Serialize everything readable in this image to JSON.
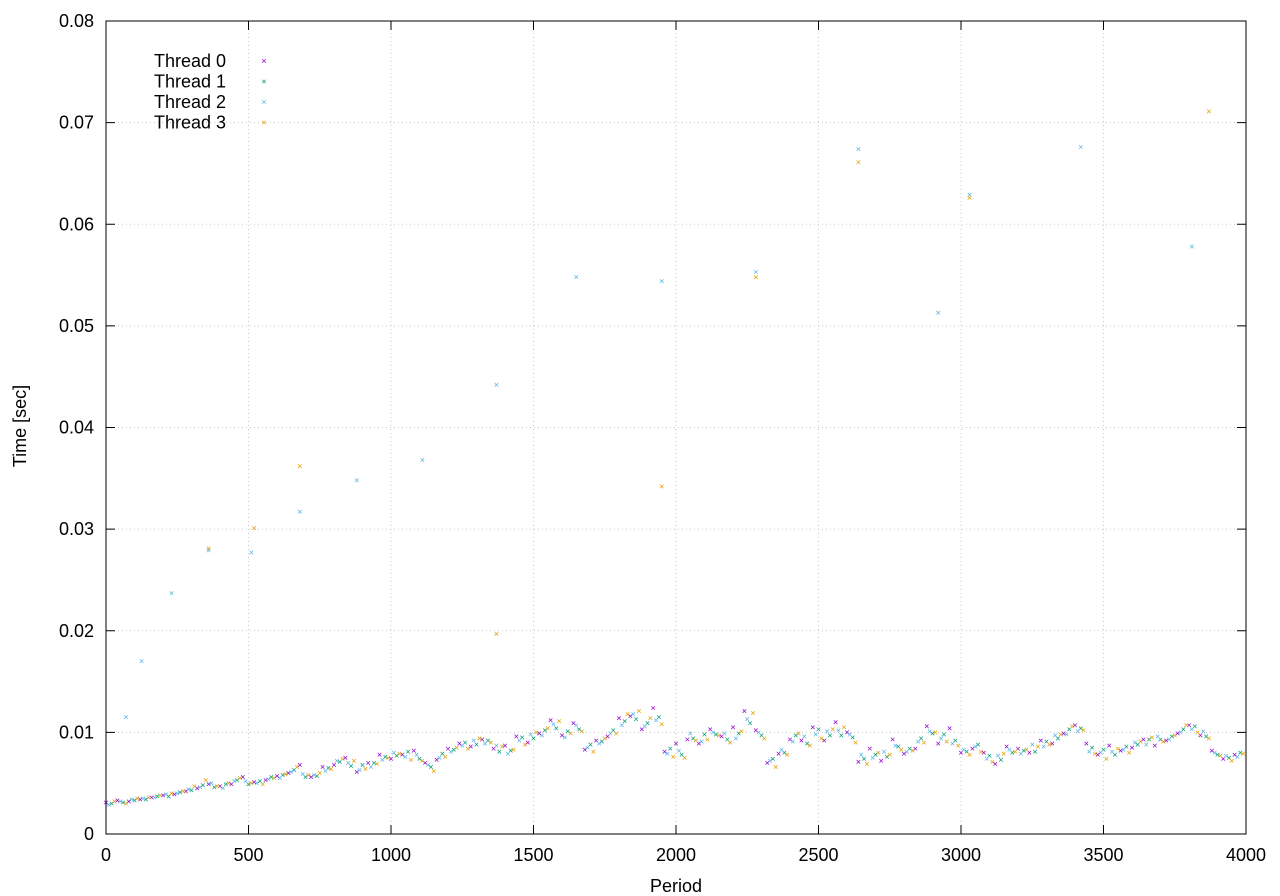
{
  "chart_data": {
    "type": "scatter",
    "xlabel": "Period",
    "ylabel": "Time [sec]",
    "xlim": [
      0,
      4000
    ],
    "ylim": [
      0,
      0.08
    ],
    "x_ticks": [
      "0",
      "500",
      "1000",
      "1500",
      "2000",
      "2500",
      "3000",
      "3500",
      "4000"
    ],
    "y_ticks": [
      "0",
      "0.01",
      "0.02",
      "0.03",
      "0.04",
      "0.05",
      "0.06",
      "0.07",
      "0.08"
    ],
    "grid": true,
    "legend_position": "top-left",
    "marker": "x",
    "series": [
      {
        "name": "Thread 0",
        "color": "#9400d3",
        "x": [
          0,
          40,
          80,
          120,
          160,
          200,
          240,
          280,
          320,
          360,
          400,
          440,
          480,
          520,
          560,
          600,
          640,
          680,
          720,
          760,
          800,
          840,
          880,
          920,
          960,
          1000,
          1040,
          1080,
          1120,
          1160,
          1200,
          1240,
          1280,
          1320,
          1360,
          1400,
          1440,
          1480,
          1520,
          1560,
          1600,
          1640,
          1680,
          1720,
          1760,
          1800,
          1840,
          1880,
          1920,
          1960,
          2000,
          2040,
          2080,
          2120,
          2160,
          2200,
          2240,
          2280,
          2320,
          2360,
          2400,
          2440,
          2480,
          2520,
          2560,
          2600,
          2640,
          2680,
          2720,
          2760,
          2800,
          2840,
          2880,
          2920,
          2960,
          3000,
          3040,
          3080,
          3120,
          3160,
          3200,
          3240,
          3280,
          3320,
          3360,
          3400,
          3440,
          3480,
          3520,
          3560,
          3600,
          3640,
          3680,
          3720,
          3760,
          3800,
          3840,
          3880,
          3920,
          3960
        ],
        "y": [
          0.0031,
          0.0033,
          0.0032,
          0.0034,
          0.0036,
          0.0038,
          0.0039,
          0.0042,
          0.0045,
          0.0049,
          0.0047,
          0.0049,
          0.0056,
          0.0051,
          0.0053,
          0.0057,
          0.006,
          0.0068,
          0.0056,
          0.0066,
          0.0068,
          0.0075,
          0.0061,
          0.007,
          0.0078,
          0.0074,
          0.0078,
          0.0082,
          0.007,
          0.0073,
          0.0084,
          0.0089,
          0.0086,
          0.0093,
          0.0084,
          0.0087,
          0.0096,
          0.009,
          0.0099,
          0.0112,
          0.0097,
          0.0109,
          0.0083,
          0.0092,
          0.0096,
          0.0114,
          0.0116,
          0.0103,
          0.0124,
          0.0081,
          0.0089,
          0.0093,
          0.0089,
          0.0103,
          0.0096,
          0.0105,
          0.0121,
          0.0102,
          0.007,
          0.0079,
          0.0093,
          0.0092,
          0.0105,
          0.0092,
          0.011,
          0.01,
          0.0071,
          0.0084,
          0.0072,
          0.0093,
          0.0079,
          0.0084,
          0.0106,
          0.0089,
          0.0104,
          0.008,
          0.0084,
          0.008,
          0.0069,
          0.0086,
          0.0084,
          0.008,
          0.0092,
          0.0089,
          0.0099,
          0.0107,
          0.0089,
          0.0078,
          0.0087,
          0.0082,
          0.0085,
          0.0093,
          0.0087,
          0.0092,
          0.0099,
          0.0107,
          0.0097,
          0.0082,
          0.0074,
          0.0078
        ]
      },
      {
        "name": "Thread 1",
        "color": "#009e73",
        "x": [
          20,
          60,
          100,
          140,
          180,
          220,
          260,
          300,
          340,
          380,
          420,
          460,
          500,
          540,
          580,
          620,
          660,
          700,
          740,
          780,
          820,
          860,
          900,
          940,
          980,
          1020,
          1060,
          1100,
          1140,
          1180,
          1220,
          1260,
          1300,
          1340,
          1380,
          1420,
          1460,
          1500,
          1540,
          1580,
          1620,
          1660,
          1700,
          1740,
          1780,
          1820,
          1860,
          1900,
          1940,
          1980,
          2020,
          2060,
          2100,
          2140,
          2180,
          2220,
          2260,
          2300,
          2340,
          2380,
          2420,
          2460,
          2500,
          2540,
          2580,
          2620,
          2660,
          2700,
          2740,
          2780,
          2820,
          2860,
          2900,
          2940,
          2980,
          3020,
          3060,
          3100,
          3140,
          3180,
          3220,
          3260,
          3300,
          3340,
          3380,
          3420,
          3460,
          3500,
          3540,
          3580,
          3620,
          3660,
          3700,
          3740,
          3780,
          3820,
          3860,
          3900,
          3940,
          3980
        ],
        "y": [
          0.003,
          0.0031,
          0.0033,
          0.0034,
          0.0037,
          0.0037,
          0.0041,
          0.0043,
          0.0048,
          0.0046,
          0.0049,
          0.0053,
          0.0049,
          0.0052,
          0.0056,
          0.0058,
          0.0063,
          0.0056,
          0.0057,
          0.0065,
          0.0071,
          0.0067,
          0.0068,
          0.007,
          0.0076,
          0.0077,
          0.0081,
          0.0074,
          0.0066,
          0.0079,
          0.0083,
          0.009,
          0.0088,
          0.0092,
          0.0081,
          0.0082,
          0.0095,
          0.0094,
          0.0102,
          0.0104,
          0.0101,
          0.0103,
          0.0088,
          0.0091,
          0.0102,
          0.0111,
          0.0113,
          0.0109,
          0.0115,
          0.0084,
          0.0078,
          0.0094,
          0.0098,
          0.0098,
          0.0093,
          0.0099,
          0.0109,
          0.0097,
          0.0074,
          0.008,
          0.0097,
          0.0089,
          0.0103,
          0.0097,
          0.0097,
          0.0095,
          0.0074,
          0.0078,
          0.0076,
          0.0086,
          0.0084,
          0.0094,
          0.0099,
          0.0098,
          0.0092,
          0.0081,
          0.0088,
          0.0077,
          0.0073,
          0.008,
          0.0082,
          0.0081,
          0.0091,
          0.0094,
          0.0103,
          0.0104,
          0.0085,
          0.0083,
          0.0078,
          0.0086,
          0.0088,
          0.0093,
          0.0093,
          0.0096,
          0.0103,
          0.0106,
          0.0096,
          0.0078,
          0.0075,
          0.008
        ]
      },
      {
        "name": "Thread 2",
        "color": "#56b4e9",
        "x": [
          10,
          50,
          90,
          130,
          170,
          210,
          250,
          290,
          330,
          370,
          410,
          450,
          490,
          530,
          570,
          610,
          650,
          690,
          730,
          770,
          810,
          850,
          890,
          930,
          970,
          1010,
          1050,
          1090,
          1130,
          1170,
          1210,
          1250,
          1290,
          1330,
          1370,
          1410,
          1450,
          1490,
          1530,
          1570,
          1610,
          1650,
          1690,
          1730,
          1770,
          1810,
          1850,
          1890,
          1930,
          1970,
          2010,
          2050,
          2090,
          2130,
          2170,
          2210,
          2250,
          2290,
          2330,
          2370,
          2410,
          2450,
          2490,
          2530,
          2570,
          2610,
          2650,
          2690,
          2730,
          2770,
          2810,
          2850,
          2890,
          2930,
          2970,
          3010,
          3050,
          3090,
          3130,
          3170,
          3210,
          3250,
          3290,
          3330,
          3370,
          3410,
          3450,
          3490,
          3530,
          3570,
          3610,
          3650,
          3690,
          3730,
          3770,
          3810,
          3850,
          3890,
          3930,
          3970
        ],
        "y": [
          0.0029,
          0.0032,
          0.0034,
          0.0035,
          0.0036,
          0.0039,
          0.004,
          0.0044,
          0.0046,
          0.005,
          0.0045,
          0.0052,
          0.0052,
          0.005,
          0.0054,
          0.0055,
          0.0061,
          0.0059,
          0.0058,
          0.0062,
          0.0072,
          0.007,
          0.0063,
          0.0066,
          0.0073,
          0.008,
          0.0076,
          0.0078,
          0.0068,
          0.0075,
          0.0081,
          0.0087,
          0.0092,
          0.0089,
          0.0087,
          0.0079,
          0.0092,
          0.0098,
          0.0097,
          0.0108,
          0.0095,
          0.0107,
          0.0085,
          0.0089,
          0.0099,
          0.0107,
          0.0118,
          0.0106,
          0.0112,
          0.0079,
          0.0082,
          0.0099,
          0.0091,
          0.01,
          0.0099,
          0.0094,
          0.0113,
          0.01,
          0.0072,
          0.0083,
          0.0091,
          0.0096,
          0.0098,
          0.0101,
          0.0102,
          0.0098,
          0.0078,
          0.0075,
          0.0081,
          0.0087,
          0.0081,
          0.0091,
          0.0101,
          0.0094,
          0.0089,
          0.0083,
          0.0086,
          0.0074,
          0.0077,
          0.0083,
          0.0079,
          0.0088,
          0.0086,
          0.0097,
          0.0098,
          0.0101,
          0.0081,
          0.008,
          0.0081,
          0.0083,
          0.009,
          0.0088,
          0.0096,
          0.0093,
          0.01,
          0.0103,
          0.0101,
          0.008,
          0.0077,
          0.0076
        ],
        "outliers": {
          "x": [
            70,
            125,
            230,
            360,
            510,
            680,
            880,
            1110,
            1370,
            1650,
            1950,
            2280,
            2640,
            2920,
            3030,
            3420,
            3810
          ],
          "y": [
            0.0115,
            0.017,
            0.0237,
            0.0279,
            0.0277,
            0.0317,
            0.0348,
            0.0368,
            0.0442,
            0.0548,
            0.0544,
            0.0553,
            0.0674,
            0.0513,
            0.0629,
            0.0676,
            0.0578
          ]
        }
      },
      {
        "name": "Thread 3",
        "color": "#e69f00",
        "x": [
          30,
          70,
          110,
          150,
          190,
          230,
          270,
          310,
          350,
          390,
          430,
          470,
          510,
          550,
          590,
          630,
          670,
          710,
          750,
          790,
          830,
          870,
          910,
          950,
          990,
          1030,
          1070,
          1110,
          1150,
          1190,
          1230,
          1270,
          1310,
          1350,
          1390,
          1430,
          1470,
          1510,
          1550,
          1590,
          1630,
          1670,
          1710,
          1750,
          1790,
          1830,
          1870,
          1910,
          1950,
          1990,
          2030,
          2070,
          2110,
          2150,
          2190,
          2230,
          2270,
          2310,
          2350,
          2390,
          2430,
          2470,
          2510,
          2550,
          2590,
          2630,
          2670,
          2710,
          2750,
          2790,
          2830,
          2870,
          2910,
          2950,
          2990,
          3030,
          3070,
          3110,
          3150,
          3190,
          3230,
          3270,
          3310,
          3350,
          3390,
          3430,
          3470,
          3510,
          3550,
          3590,
          3630,
          3670,
          3710,
          3750,
          3790,
          3830,
          3870,
          3910,
          3950,
          3990
        ],
        "y": [
          0.0032,
          0.003,
          0.0035,
          0.0036,
          0.0038,
          0.004,
          0.0042,
          0.0047,
          0.0053,
          0.0047,
          0.005,
          0.0055,
          0.005,
          0.0049,
          0.0055,
          0.0059,
          0.0066,
          0.0058,
          0.006,
          0.0064,
          0.0074,
          0.0072,
          0.0064,
          0.0069,
          0.0075,
          0.0079,
          0.0073,
          0.0072,
          0.0062,
          0.0076,
          0.0085,
          0.0084,
          0.0094,
          0.009,
          0.0086,
          0.0083,
          0.0088,
          0.01,
          0.0104,
          0.0111,
          0.0099,
          0.0101,
          0.0081,
          0.0094,
          0.0099,
          0.0118,
          0.0121,
          0.0114,
          0.0108,
          0.0076,
          0.0075,
          0.0092,
          0.0093,
          0.0097,
          0.009,
          0.0101,
          0.0119,
          0.0094,
          0.0066,
          0.0078,
          0.0099,
          0.0087,
          0.0094,
          0.0103,
          0.0105,
          0.009,
          0.0069,
          0.008,
          0.0078,
          0.0083,
          0.0082,
          0.009,
          0.01,
          0.0091,
          0.0087,
          0.0078,
          0.0081,
          0.0071,
          0.0079,
          0.0081,
          0.0083,
          0.0086,
          0.0088,
          0.0098,
          0.0106,
          0.0102,
          0.0079,
          0.0074,
          0.0084,
          0.008,
          0.0091,
          0.0095,
          0.0091,
          0.0097,
          0.0107,
          0.01,
          0.0094,
          0.0077,
          0.0072,
          0.0079
        ],
        "outliers": {
          "x": [
            360,
            520,
            680,
            1370,
            1950,
            2280,
            2640,
            3030,
            3870
          ],
          "y": [
            0.0281,
            0.0301,
            0.0362,
            0.0197,
            0.0342,
            0.0548,
            0.0661,
            0.0626,
            0.0711
          ]
        }
      }
    ]
  }
}
